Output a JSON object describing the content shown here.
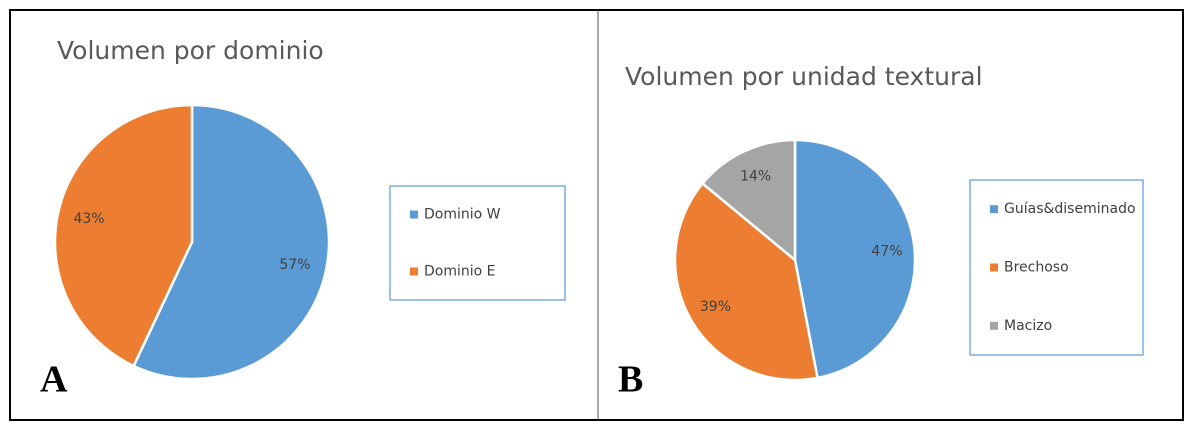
{
  "chart_data": [
    {
      "type": "pie",
      "panel": "A",
      "title": "Volumen por dominio",
      "categories": [
        "Dominio W",
        "Dominio E"
      ],
      "values": [
        57,
        43
      ],
      "value_labels": [
        "57%",
        "43%"
      ],
      "colors": [
        "#5b9bd5",
        "#ed7d31"
      ],
      "legend": "right"
    },
    {
      "type": "pie",
      "panel": "B",
      "title": "Volumen por unidad textural",
      "categories": [
        "Guías&diseminado",
        "Brechoso",
        "Macizo"
      ],
      "values": [
        47,
        39,
        14
      ],
      "value_labels": [
        "47%",
        "39%",
        "14%"
      ],
      "colors": [
        "#5b9bd5",
        "#ed7d31",
        "#a5a5a5"
      ],
      "legend": "right"
    }
  ]
}
